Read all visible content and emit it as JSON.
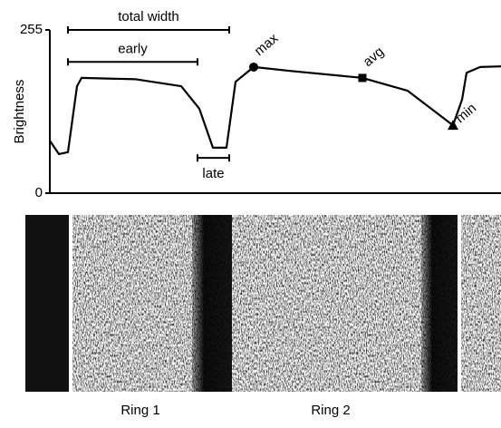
{
  "chart_data": {
    "type": "line",
    "ylabel": "Brightness",
    "ylim": [
      0,
      255
    ],
    "yticks": [
      0,
      255
    ],
    "xlim": [
      0,
      498
    ],
    "color": "#000000",
    "x": [
      0,
      10,
      20,
      30,
      35,
      95,
      145,
      165,
      180,
      195,
      205,
      225,
      265,
      345,
      395,
      445,
      455,
      460,
      475,
      498
    ],
    "values": [
      82,
      61,
      64,
      167,
      180,
      178,
      167,
      132,
      71,
      71,
      174,
      197,
      191,
      180,
      160,
      106,
      146,
      188,
      197,
      198
    ],
    "markers": [
      {
        "label": "max",
        "x": 225,
        "y": 197,
        "shape": "circle"
      },
      {
        "label": "avg",
        "x": 345,
        "y": 180,
        "shape": "square"
      },
      {
        "label": "min",
        "x": 445,
        "y": 106,
        "shape": "triangle"
      }
    ],
    "annotations": [
      {
        "label": "total width",
        "x": [
          20,
          198
        ],
        "y": 255
      },
      {
        "label": "early",
        "x": [
          20,
          163
        ],
        "y": 205
      },
      {
        "label": "late",
        "x": [
          163,
          198
        ],
        "y": 55
      }
    ],
    "image_labels": [
      "Ring 1",
      "Ring 2"
    ]
  }
}
